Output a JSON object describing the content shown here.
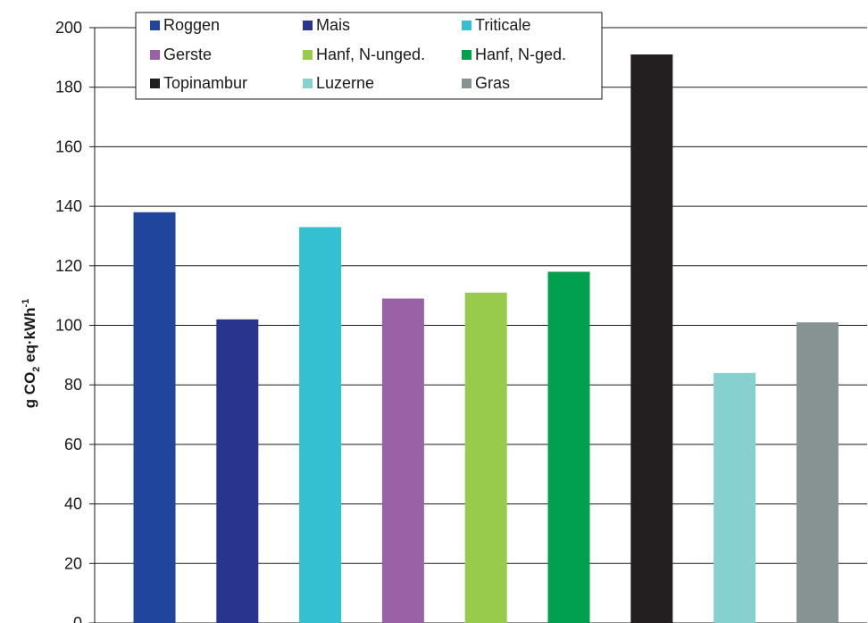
{
  "chart_data": {
    "type": "bar",
    "ylabel": {
      "base": "g CO",
      "sub": "2",
      "mid": " eq·kWh",
      "sup": "-1"
    },
    "ylim": [
      0,
      200
    ],
    "yticks": [
      0,
      20,
      40,
      60,
      80,
      100,
      120,
      140,
      160,
      180,
      200
    ],
    "grid": true,
    "legend_position": "top-left",
    "series": [
      {
        "name": "Roggen",
        "value": 138,
        "color": "#1f459c"
      },
      {
        "name": "Mais",
        "value": 102,
        "color": "#27358f"
      },
      {
        "name": "Triticale",
        "value": 133,
        "color": "#35c0d2"
      },
      {
        "name": "Gerste",
        "value": 109,
        "color": "#9a62a6"
      },
      {
        "name": "Hanf, N-unged.",
        "value": 111,
        "color": "#98ca4b"
      },
      {
        "name": "Hanf, N-ged.",
        "value": 118,
        "color": "#00a04e"
      },
      {
        "name": "Topinambur",
        "value": 191,
        "color": "#231f20"
      },
      {
        "name": "Luzerne",
        "value": 84,
        "color": "#86d0d0"
      },
      {
        "name": "Gras",
        "value": 101,
        "color": "#879392"
      }
    ]
  }
}
